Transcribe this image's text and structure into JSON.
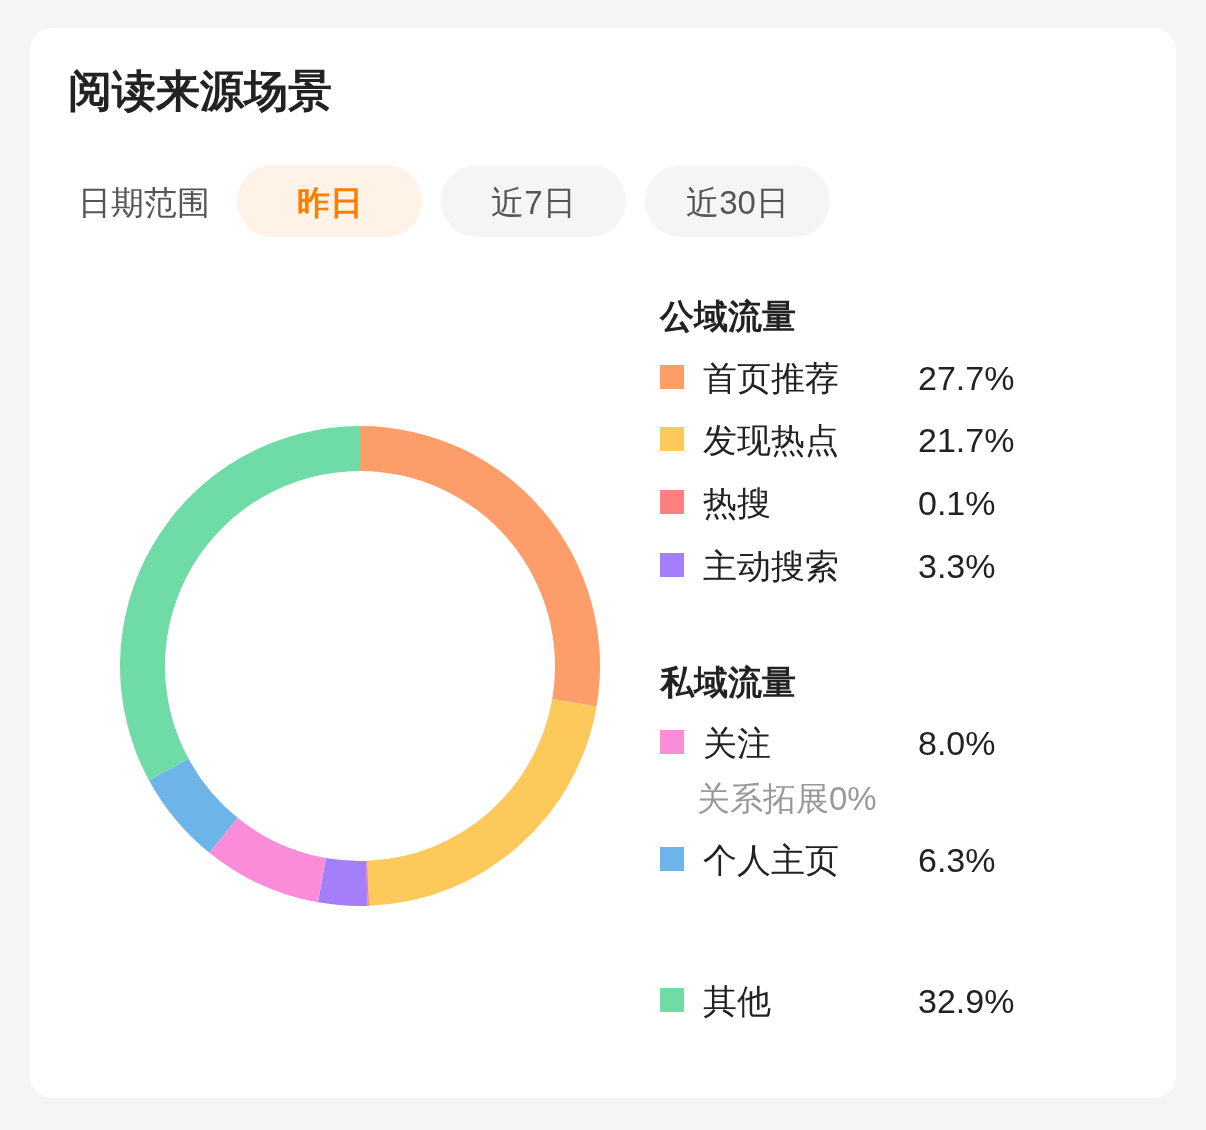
{
  "chart_data": {
    "type": "donut",
    "title": "阅读来源场景",
    "categories": [
      "首页推荐",
      "发现热点",
      "热搜",
      "主动搜索",
      "关注",
      "个人主页",
      "其他"
    ],
    "values": [
      27.7,
      21.7,
      0.1,
      3.3,
      8.0,
      6.3,
      32.9
    ],
    "value_labels": [
      "27.7%",
      "21.7%",
      "0.1%",
      "3.3%",
      "8.0%",
      "6.3%",
      "32.9%"
    ],
    "colors": [
      "#fd9e6a",
      "#fdc95a",
      "#fd7f7f",
      "#a57ffb",
      "#fb8cd9",
      "#6db4e8",
      "#6fdba7"
    ],
    "legend": "right",
    "annotations": [
      "日期范围",
      "昨日",
      "近7日",
      "近30日",
      "公域流量",
      "私域流量",
      "关系拓展0%"
    ]
  }
}
